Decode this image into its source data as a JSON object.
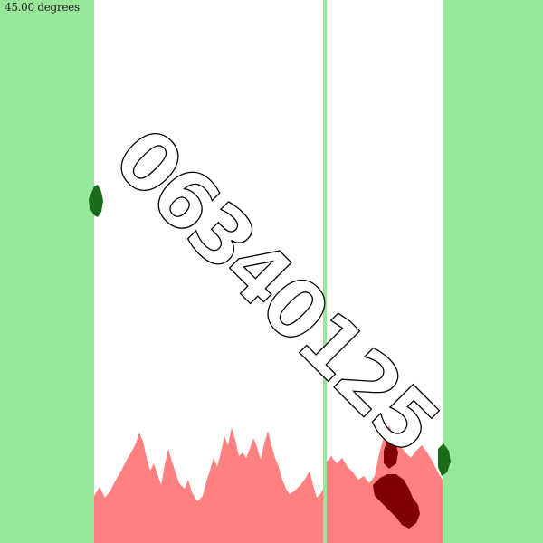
{
  "rotation_label": "45.00 degrees",
  "captcha_text": "06340125",
  "colors": {
    "background": "#98e698",
    "panel": "#ffffff",
    "divider": "#98e698",
    "terrain": "#ff8080",
    "blob_dark_red": "#800000",
    "blob_dark_green": "#1a6b1a"
  }
}
